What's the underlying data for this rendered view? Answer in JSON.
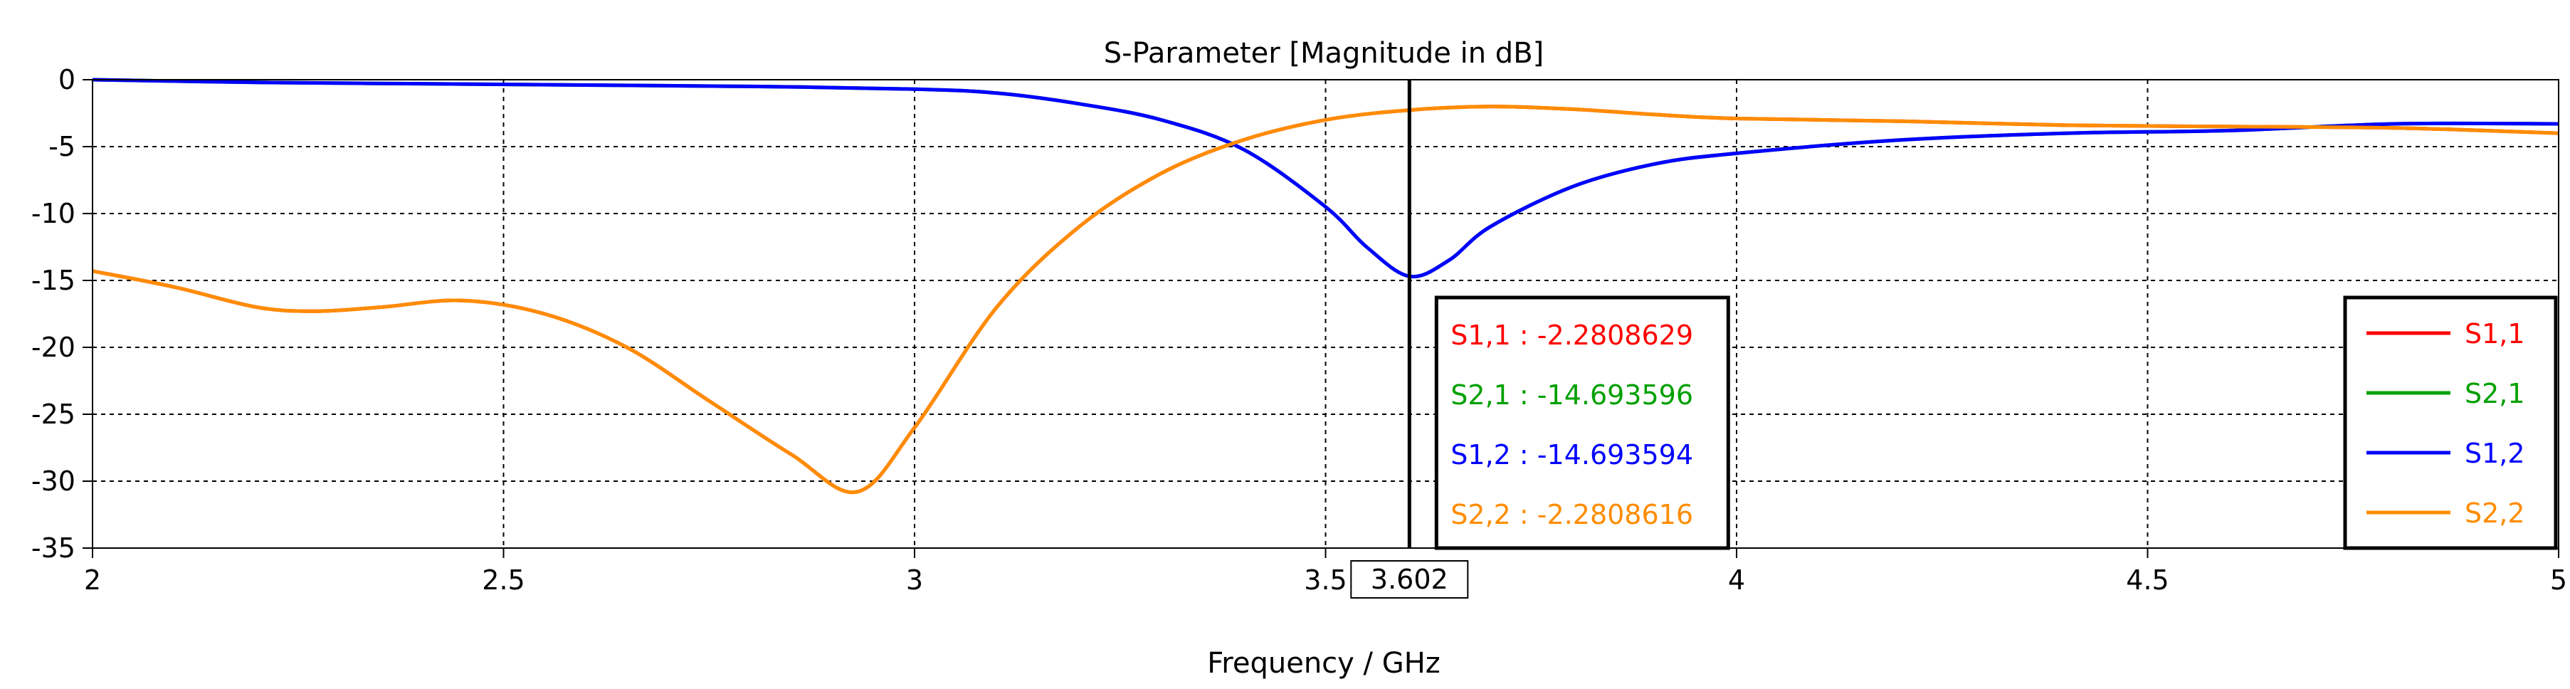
{
  "chart_data": {
    "type": "line",
    "title": "S-Parameter [Magnitude in dB]",
    "xlabel": "Frequency / GHz",
    "ylabel": "",
    "xlim": [
      2,
      5
    ],
    "ylim": [
      -35,
      0
    ],
    "xticks": [
      2,
      2.5,
      3,
      3.5,
      4,
      4.5,
      5
    ],
    "xtick_labels": [
      "2",
      "2.5",
      "3",
      "3.5",
      "4",
      "4.5",
      "5"
    ],
    "yticks": [
      0,
      -5,
      -10,
      -15,
      -20,
      -25,
      -30,
      -35
    ],
    "ytick_labels": [
      "0",
      "-5",
      "-10",
      "-15",
      "-20",
      "-25",
      "-30",
      "-35"
    ],
    "grid": true,
    "legend_position": "bottom-right",
    "marker": {
      "x": 3.602,
      "label": "3.602"
    },
    "readout": [
      {
        "label": "S1,1 : -2.2808629",
        "color": "#ff0000"
      },
      {
        "label": "S2,1 : -14.693596",
        "color": "#00a000"
      },
      {
        "label": "S1,2 : -14.693594",
        "color": "#0000ff"
      },
      {
        "label": "S2,2 : -2.2808616",
        "color": "#ff8c00"
      }
    ],
    "series": [
      {
        "name": "S1,1",
        "color": "#ff0000",
        "x": [
          2.0,
          2.1,
          2.2,
          2.27,
          2.35,
          2.45,
          2.55,
          2.65,
          2.75,
          2.85,
          2.93,
          3.0,
          3.1,
          3.2,
          3.3,
          3.4,
          3.5,
          3.6,
          3.7,
          3.8,
          3.9,
          4.0,
          4.2,
          4.4,
          4.6,
          4.8,
          5.0
        ],
        "y": [
          -14.3,
          -15.5,
          -17.0,
          -17.3,
          -17.0,
          -16.5,
          -17.5,
          -20.0,
          -24.0,
          -28.0,
          -30.8,
          -26.0,
          -17.0,
          -11.0,
          -7.0,
          -4.5,
          -3.0,
          -2.28,
          -2.0,
          -2.2,
          -2.6,
          -2.9,
          -3.1,
          -3.4,
          -3.5,
          -3.6,
          -4.0
        ]
      },
      {
        "name": "S2,1",
        "color": "#00a000",
        "x": [
          2.0,
          2.2,
          2.4,
          2.6,
          2.8,
          3.0,
          3.1,
          3.2,
          3.3,
          3.4,
          3.5,
          3.55,
          3.602,
          3.65,
          3.7,
          3.8,
          3.9,
          4.0,
          4.2,
          4.4,
          4.6,
          4.8,
          5.0
        ],
        "y": [
          0.0,
          -0.2,
          -0.3,
          -0.4,
          -0.5,
          -0.7,
          -1.0,
          -1.8,
          -3.0,
          -5.2,
          -9.5,
          -12.5,
          -14.69,
          -13.5,
          -11.0,
          -8.0,
          -6.3,
          -5.5,
          -4.5,
          -4.0,
          -3.8,
          -3.3,
          -3.3
        ]
      },
      {
        "name": "S1,2",
        "color": "#0000ff",
        "x": [
          2.0,
          2.2,
          2.4,
          2.6,
          2.8,
          3.0,
          3.1,
          3.2,
          3.3,
          3.4,
          3.5,
          3.55,
          3.602,
          3.65,
          3.7,
          3.8,
          3.9,
          4.0,
          4.2,
          4.4,
          4.6,
          4.8,
          5.0
        ],
        "y": [
          0.0,
          -0.2,
          -0.3,
          -0.4,
          -0.5,
          -0.7,
          -1.0,
          -1.8,
          -3.0,
          -5.2,
          -9.5,
          -12.5,
          -14.69,
          -13.5,
          -11.0,
          -8.0,
          -6.3,
          -5.5,
          -4.5,
          -4.0,
          -3.8,
          -3.3,
          -3.3
        ]
      },
      {
        "name": "S2,2",
        "color": "#ff8c00",
        "x": [
          2.0,
          2.1,
          2.2,
          2.27,
          2.35,
          2.45,
          2.55,
          2.65,
          2.75,
          2.85,
          2.93,
          3.0,
          3.1,
          3.2,
          3.3,
          3.4,
          3.5,
          3.6,
          3.7,
          3.8,
          3.9,
          4.0,
          4.2,
          4.4,
          4.6,
          4.8,
          5.0
        ],
        "y": [
          -14.3,
          -15.5,
          -17.0,
          -17.3,
          -17.0,
          -16.5,
          -17.5,
          -20.0,
          -24.0,
          -28.0,
          -30.8,
          -26.0,
          -17.0,
          -11.0,
          -7.0,
          -4.5,
          -3.0,
          -2.28,
          -2.0,
          -2.2,
          -2.6,
          -2.9,
          -3.1,
          -3.4,
          -3.5,
          -3.6,
          -4.0
        ]
      }
    ]
  }
}
